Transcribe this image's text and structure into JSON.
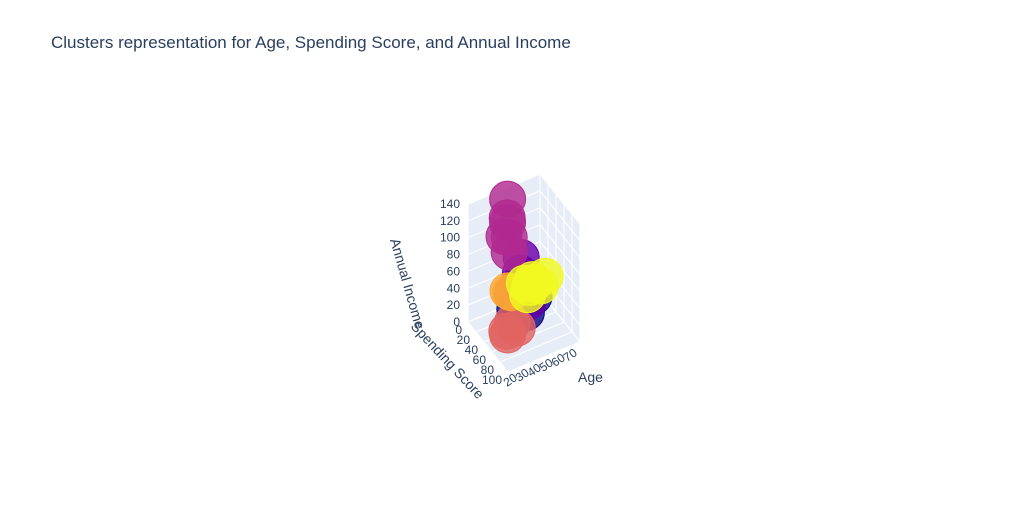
{
  "chart_data": {
    "type": "scatter3d",
    "title": "Clusters representation for Age, Spending Score, and Annual Income",
    "axes": {
      "x": {
        "label": "Age",
        "range": [
          15,
          75
        ],
        "ticks": [
          "70",
          "60",
          "50",
          "40",
          "30",
          "20"
        ]
      },
      "y": {
        "label": "Spending Score",
        "range": [
          0,
          100
        ],
        "ticks": [
          "0",
          "20",
          "40",
          "60",
          "80",
          "100"
        ]
      },
      "z": {
        "label": "Annual Income",
        "range": [
          0,
          140
        ],
        "ticks": [
          "0",
          "20",
          "40",
          "60",
          "80",
          "100",
          "120",
          "140"
        ]
      }
    },
    "grid": true,
    "legend": "none",
    "series": [
      {
        "color": "#0d0887",
        "points": [
          {
            "age": 45,
            "score": 38,
            "income": 30
          },
          {
            "age": 48,
            "score": 35,
            "income": 25
          },
          {
            "age": 42,
            "score": 42,
            "income": 36
          },
          {
            "age": 52,
            "score": 40,
            "income": 28
          },
          {
            "age": 40,
            "score": 36,
            "income": 40
          },
          {
            "age": 55,
            "score": 45,
            "income": 33
          },
          {
            "age": 47,
            "score": 50,
            "income": 22
          },
          {
            "age": 38,
            "score": 48,
            "income": 30
          }
        ]
      },
      {
        "color": "#6a00a8",
        "points": [
          {
            "age": 32,
            "score": 82,
            "income": 115
          },
          {
            "age": 30,
            "score": 86,
            "income": 100
          },
          {
            "age": 35,
            "score": 78,
            "income": 88
          },
          {
            "age": 29,
            "score": 90,
            "income": 78
          },
          {
            "age": 33,
            "score": 75,
            "income": 70
          },
          {
            "age": 36,
            "score": 88,
            "income": 64
          }
        ]
      },
      {
        "color": "#b12a90",
        "points": [
          {
            "age": 43,
            "score": 15,
            "income": 138
          },
          {
            "age": 41,
            "score": 20,
            "income": 120
          },
          {
            "age": 44,
            "score": 12,
            "income": 108
          },
          {
            "age": 39,
            "score": 18,
            "income": 98
          },
          {
            "age": 46,
            "score": 10,
            "income": 88
          },
          {
            "age": 42,
            "score": 22,
            "income": 80
          }
        ]
      },
      {
        "color": "#e16462",
        "points": [
          {
            "age": 25,
            "score": 80,
            "income": 40
          },
          {
            "age": 22,
            "score": 76,
            "income": 30
          },
          {
            "age": 28,
            "score": 84,
            "income": 35
          },
          {
            "age": 24,
            "score": 72,
            "income": 22
          }
        ]
      },
      {
        "color": "#fca636",
        "points": [
          {
            "age": 45,
            "score": 10,
            "income": 25
          },
          {
            "age": 48,
            "score": 8,
            "income": 20
          }
        ]
      },
      {
        "color": "#f0f921",
        "points": [
          {
            "age": 52,
            "score": 50,
            "income": 58
          },
          {
            "age": 48,
            "score": 55,
            "income": 54
          },
          {
            "age": 55,
            "score": 45,
            "income": 50
          },
          {
            "age": 50,
            "score": 60,
            "income": 60
          },
          {
            "age": 58,
            "score": 52,
            "income": 48
          },
          {
            "age": 46,
            "score": 48,
            "income": 56
          },
          {
            "age": 60,
            "score": 58,
            "income": 62
          },
          {
            "age": 44,
            "score": 62,
            "income": 52
          }
        ]
      }
    ]
  }
}
